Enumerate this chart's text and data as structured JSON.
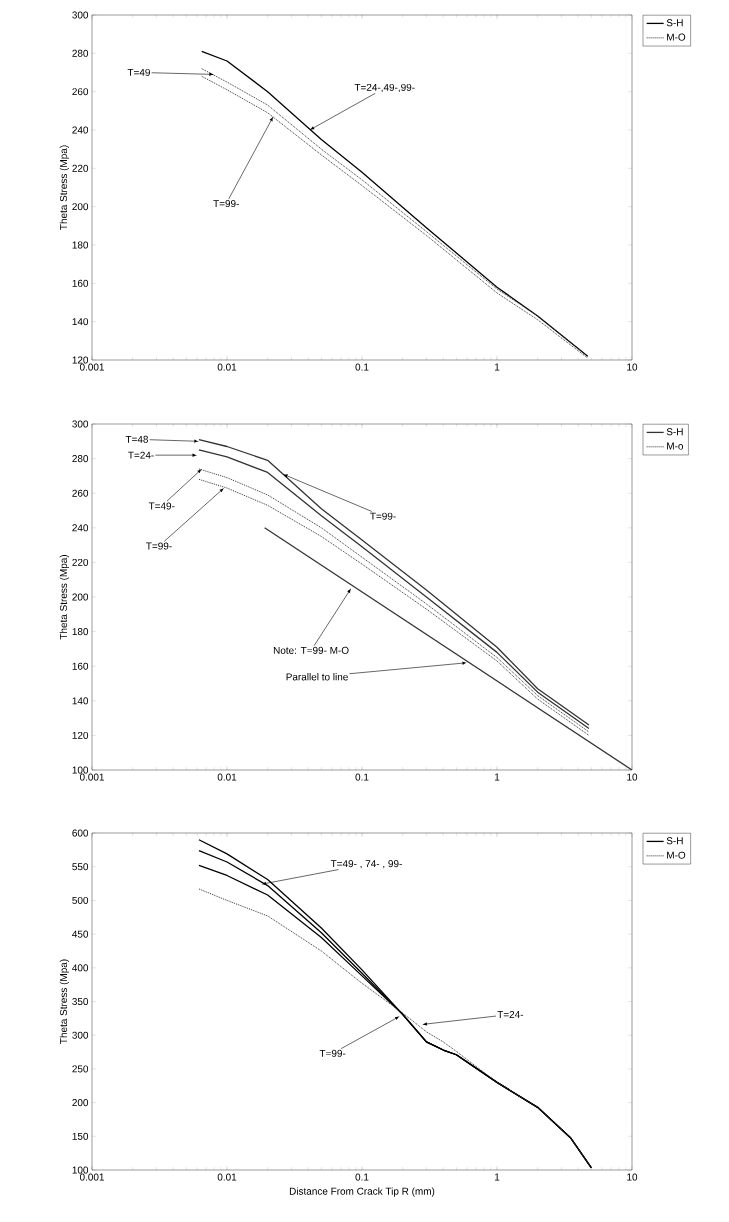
{
  "chart_data": [
    {
      "type": "line",
      "ylabel": "Theta Stress (Mpa)",
      "log": "x",
      "legend": "right",
      "xlim": [
        0.001,
        10
      ],
      "xticks": [
        0.001,
        0.01,
        0.1,
        1,
        10
      ],
      "ylim": [
        120,
        300
      ],
      "yticks": [
        120,
        140,
        160,
        180,
        200,
        220,
        240,
        260,
        280,
        300
      ],
      "series": [
        {
          "name": "S-H",
          "color": "#000000",
          "line_style": "solid",
          "x": [
            0.0065,
            0.01,
            0.02,
            0.05,
            0.1,
            0.3,
            1,
            2,
            4.7
          ],
          "values": [
            281,
            276,
            260,
            235,
            218,
            189,
            158,
            143,
            122
          ]
        },
        {
          "name": "M-O",
          "color": "#333333",
          "line_style": "dotted",
          "x": [
            0.0065,
            0.01,
            0.02,
            0.05,
            0.1,
            0.3,
            1,
            2,
            4.7
          ],
          "values": [
            272,
            265,
            253,
            230,
            214,
            187,
            157,
            143,
            122
          ]
        },
        {
          "color": "#333333",
          "line_style": "dotted",
          "x": [
            0.0065,
            0.01,
            0.02,
            0.05,
            0.1,
            0.3,
            1,
            2,
            4.7
          ],
          "values": [
            268,
            261,
            249,
            227,
            211,
            185,
            155,
            141,
            121
          ]
        }
      ],
      "annotations": [
        {
          "text": "T=49",
          "x": 0.008,
          "y": 269
        },
        {
          "text": "T=24-,49-,99-",
          "x": 0.041,
          "y": 240
        },
        {
          "text": "T=99-",
          "x": 0.022,
          "y": 247
        }
      ]
    },
    {
      "type": "line",
      "ylabel": "Theta Stress (Mpa)",
      "log": "x",
      "legend": "right",
      "xlim": [
        0.001,
        10
      ],
      "xticks": [
        0.001,
        0.01,
        0.1,
        1,
        10
      ],
      "ylim": [
        100,
        300
      ],
      "yticks": [
        100,
        120,
        140,
        160,
        180,
        200,
        220,
        240,
        260,
        280,
        300
      ],
      "series": [
        {
          "name": "S-H",
          "color": "#333333",
          "line_style": "solid",
          "x": [
            0.0062,
            0.01,
            0.02,
            0.05,
            0.1,
            0.3,
            1,
            2,
            4.8
          ],
          "values": [
            291,
            287,
            279,
            251,
            233,
            204,
            171,
            147,
            126
          ]
        },
        {
          "color": "#333333",
          "line_style": "solid",
          "x": [
            0.0062,
            0.01,
            0.02,
            0.05,
            0.1,
            0.3,
            1,
            2,
            4.8
          ],
          "values": [
            285,
            281,
            272,
            247,
            229,
            200,
            168,
            145,
            124
          ]
        },
        {
          "name": "M-o",
          "color": "#333333",
          "line_style": "dotted",
          "x": [
            0.0062,
            0.01,
            0.02,
            0.05,
            0.1,
            0.3,
            1,
            2,
            4.8
          ],
          "values": [
            274,
            269,
            259,
            240,
            223,
            196,
            165,
            143,
            122
          ]
        },
        {
          "color": "#333333",
          "line_style": "dotted",
          "x": [
            0.0062,
            0.01,
            0.02,
            0.05,
            0.1,
            0.3,
            1,
            2,
            4.8
          ],
          "values": [
            268,
            263,
            253,
            235,
            219,
            193,
            163,
            141,
            120
          ]
        },
        {
          "color": "#333333",
          "line_style": "solid",
          "x": [
            0.019,
            10
          ],
          "values": [
            240,
            100
          ]
        }
      ],
      "annotations": [
        {
          "text": "T=48",
          "x": 0.0062,
          "y": 290
        },
        {
          "text": "T=24-",
          "x": 0.006,
          "y": 282
        },
        {
          "text": "T=49-",
          "x": 0.0065,
          "y": 274
        },
        {
          "text": "T=99-",
          "x": 0.0095,
          "y": 263
        },
        {
          "text": "T=99-",
          "x": 0.026,
          "y": 271
        },
        {
          "text": "Note: T=99- M-O",
          "x": 0.083,
          "y": 205
        },
        {
          "text": "Parallel to line",
          "x": 0.6,
          "y": 162
        }
      ]
    },
    {
      "type": "line",
      "ylabel": "Theta Stress (Mpa)",
      "xlabel": "Distance From Crack Tip R (mm)",
      "log": "x",
      "legend": "right",
      "xlim": [
        0.001,
        10
      ],
      "xticks": [
        0.001,
        0.01,
        0.1,
        1,
        10
      ],
      "ylim": [
        100,
        600
      ],
      "yticks": [
        100,
        150,
        200,
        250,
        300,
        350,
        400,
        450,
        500,
        550,
        600
      ],
      "series": [
        {
          "name": "S-H",
          "color": "#000000",
          "line_style": "solid",
          "x": [
            0.0062,
            0.01,
            0.02,
            0.05,
            0.1,
            0.2,
            0.3,
            0.4,
            0.5,
            1,
            2,
            3.5,
            5
          ],
          "values": [
            590,
            569,
            531,
            459,
            397,
            331,
            290,
            278,
            271,
            230,
            193,
            148,
            103
          ]
        },
        {
          "color": "#000000",
          "line_style": "solid",
          "x": [
            0.0062,
            0.01,
            0.02,
            0.05,
            0.1,
            0.2,
            0.3,
            0.4,
            0.5,
            1,
            2,
            3.5,
            5
          ],
          "values": [
            574,
            557,
            522,
            452,
            392,
            331,
            290,
            278,
            271,
            230,
            193,
            148,
            103
          ]
        },
        {
          "color": "#000000",
          "line_style": "solid",
          "x": [
            0.0062,
            0.01,
            0.02,
            0.05,
            0.1,
            0.2,
            0.3,
            0.4,
            0.5,
            1,
            2,
            3.5,
            5
          ],
          "values": [
            552,
            537,
            508,
            445,
            388,
            331,
            290,
            278,
            271,
            230,
            193,
            148,
            103
          ]
        },
        {
          "name": "M-O",
          "color": "#333333",
          "line_style": "dotted",
          "x": [
            0.0062,
            0.01,
            0.02,
            0.05,
            0.1,
            0.2,
            0.3,
            0.4,
            0.5,
            1,
            2,
            3.5,
            5
          ],
          "values": [
            517,
            500,
            477,
            425,
            377,
            333,
            305,
            290,
            276,
            230,
            193,
            148,
            103
          ]
        }
      ],
      "annotations": [
        {
          "text": "T=49- , 74- , 99-",
          "x": 0.018,
          "y": 524
        },
        {
          "text": "T=24-",
          "x": 0.28,
          "y": 316
        },
        {
          "text": "T=99-",
          "x": 0.19,
          "y": 328
        }
      ]
    }
  ]
}
